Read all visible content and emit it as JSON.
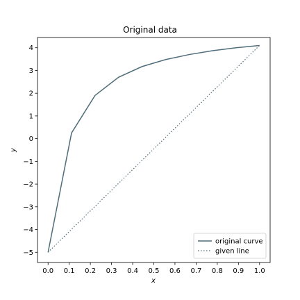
{
  "chart_data": {
    "type": "line",
    "title": "Original data",
    "xlabel": "x",
    "ylabel": "y",
    "xlim": [
      -0.05,
      1.05
    ],
    "ylim": [
      -5.45,
      4.45
    ],
    "xticks": [
      0.0,
      0.1,
      0.2,
      0.3,
      0.4,
      0.5,
      0.6,
      0.7,
      0.8,
      0.9,
      1.0
    ],
    "xtick_labels": [
      "0.0",
      "0.1",
      "0.2",
      "0.3",
      "0.4",
      "0.5",
      "0.6",
      "0.7",
      "0.8",
      "0.9",
      "1.0"
    ],
    "yticks": [
      -5,
      -4,
      -3,
      -2,
      -1,
      0,
      1,
      2,
      3,
      4
    ],
    "ytick_labels": [
      "−5",
      "−4",
      "−3",
      "−2",
      "−1",
      "0",
      "1",
      "2",
      "3",
      "4"
    ],
    "grid": false,
    "legend": "lower-right",
    "series": [
      {
        "name": "original curve",
        "style": "solid",
        "color": "#4f6d7a",
        "x": [
          0.0,
          0.111,
          0.222,
          0.333,
          0.444,
          0.556,
          0.667,
          0.778,
          0.889,
          1.0
        ],
        "y": [
          -5.0,
          0.25,
          1.9,
          2.7,
          3.17,
          3.48,
          3.7,
          3.87,
          4.0,
          4.1
        ]
      },
      {
        "name": "given line",
        "style": "dotted",
        "color": "#4f6d7a",
        "x": [
          0.0,
          1.0
        ],
        "y": [
          -5.0,
          4.1
        ]
      }
    ]
  }
}
